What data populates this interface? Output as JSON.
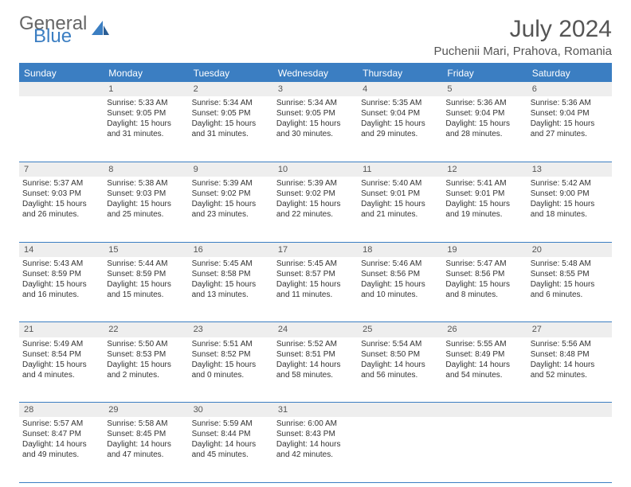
{
  "logo": {
    "line1": "General",
    "line2": "Blue"
  },
  "title": "July 2024",
  "location": "Puchenii Mari, Prahova, Romania",
  "weekdays": [
    "Sunday",
    "Monday",
    "Tuesday",
    "Wednesday",
    "Thursday",
    "Friday",
    "Saturday"
  ],
  "colors": {
    "accent": "#3b7ec2",
    "header_text": "#ffffff",
    "daynum_bg": "#eeeeee",
    "text": "#333333",
    "logo_gray": "#666666"
  },
  "weeks": [
    {
      "nums": [
        "",
        "1",
        "2",
        "3",
        "4",
        "5",
        "6"
      ],
      "cells": [
        null,
        {
          "sunrise": "Sunrise: 5:33 AM",
          "sunset": "Sunset: 9:05 PM",
          "day": "Daylight: 15 hours and 31 minutes."
        },
        {
          "sunrise": "Sunrise: 5:34 AM",
          "sunset": "Sunset: 9:05 PM",
          "day": "Daylight: 15 hours and 31 minutes."
        },
        {
          "sunrise": "Sunrise: 5:34 AM",
          "sunset": "Sunset: 9:05 PM",
          "day": "Daylight: 15 hours and 30 minutes."
        },
        {
          "sunrise": "Sunrise: 5:35 AM",
          "sunset": "Sunset: 9:04 PM",
          "day": "Daylight: 15 hours and 29 minutes."
        },
        {
          "sunrise": "Sunrise: 5:36 AM",
          "sunset": "Sunset: 9:04 PM",
          "day": "Daylight: 15 hours and 28 minutes."
        },
        {
          "sunrise": "Sunrise: 5:36 AM",
          "sunset": "Sunset: 9:04 PM",
          "day": "Daylight: 15 hours and 27 minutes."
        }
      ]
    },
    {
      "nums": [
        "7",
        "8",
        "9",
        "10",
        "11",
        "12",
        "13"
      ],
      "cells": [
        {
          "sunrise": "Sunrise: 5:37 AM",
          "sunset": "Sunset: 9:03 PM",
          "day": "Daylight: 15 hours and 26 minutes."
        },
        {
          "sunrise": "Sunrise: 5:38 AM",
          "sunset": "Sunset: 9:03 PM",
          "day": "Daylight: 15 hours and 25 minutes."
        },
        {
          "sunrise": "Sunrise: 5:39 AM",
          "sunset": "Sunset: 9:02 PM",
          "day": "Daylight: 15 hours and 23 minutes."
        },
        {
          "sunrise": "Sunrise: 5:39 AM",
          "sunset": "Sunset: 9:02 PM",
          "day": "Daylight: 15 hours and 22 minutes."
        },
        {
          "sunrise": "Sunrise: 5:40 AM",
          "sunset": "Sunset: 9:01 PM",
          "day": "Daylight: 15 hours and 21 minutes."
        },
        {
          "sunrise": "Sunrise: 5:41 AM",
          "sunset": "Sunset: 9:01 PM",
          "day": "Daylight: 15 hours and 19 minutes."
        },
        {
          "sunrise": "Sunrise: 5:42 AM",
          "sunset": "Sunset: 9:00 PM",
          "day": "Daylight: 15 hours and 18 minutes."
        }
      ]
    },
    {
      "nums": [
        "14",
        "15",
        "16",
        "17",
        "18",
        "19",
        "20"
      ],
      "cells": [
        {
          "sunrise": "Sunrise: 5:43 AM",
          "sunset": "Sunset: 8:59 PM",
          "day": "Daylight: 15 hours and 16 minutes."
        },
        {
          "sunrise": "Sunrise: 5:44 AM",
          "sunset": "Sunset: 8:59 PM",
          "day": "Daylight: 15 hours and 15 minutes."
        },
        {
          "sunrise": "Sunrise: 5:45 AM",
          "sunset": "Sunset: 8:58 PM",
          "day": "Daylight: 15 hours and 13 minutes."
        },
        {
          "sunrise": "Sunrise: 5:45 AM",
          "sunset": "Sunset: 8:57 PM",
          "day": "Daylight: 15 hours and 11 minutes."
        },
        {
          "sunrise": "Sunrise: 5:46 AM",
          "sunset": "Sunset: 8:56 PM",
          "day": "Daylight: 15 hours and 10 minutes."
        },
        {
          "sunrise": "Sunrise: 5:47 AM",
          "sunset": "Sunset: 8:56 PM",
          "day": "Daylight: 15 hours and 8 minutes."
        },
        {
          "sunrise": "Sunrise: 5:48 AM",
          "sunset": "Sunset: 8:55 PM",
          "day": "Daylight: 15 hours and 6 minutes."
        }
      ]
    },
    {
      "nums": [
        "21",
        "22",
        "23",
        "24",
        "25",
        "26",
        "27"
      ],
      "cells": [
        {
          "sunrise": "Sunrise: 5:49 AM",
          "sunset": "Sunset: 8:54 PM",
          "day": "Daylight: 15 hours and 4 minutes."
        },
        {
          "sunrise": "Sunrise: 5:50 AM",
          "sunset": "Sunset: 8:53 PM",
          "day": "Daylight: 15 hours and 2 minutes."
        },
        {
          "sunrise": "Sunrise: 5:51 AM",
          "sunset": "Sunset: 8:52 PM",
          "day": "Daylight: 15 hours and 0 minutes."
        },
        {
          "sunrise": "Sunrise: 5:52 AM",
          "sunset": "Sunset: 8:51 PM",
          "day": "Daylight: 14 hours and 58 minutes."
        },
        {
          "sunrise": "Sunrise: 5:54 AM",
          "sunset": "Sunset: 8:50 PM",
          "day": "Daylight: 14 hours and 56 minutes."
        },
        {
          "sunrise": "Sunrise: 5:55 AM",
          "sunset": "Sunset: 8:49 PM",
          "day": "Daylight: 14 hours and 54 minutes."
        },
        {
          "sunrise": "Sunrise: 5:56 AM",
          "sunset": "Sunset: 8:48 PM",
          "day": "Daylight: 14 hours and 52 minutes."
        }
      ]
    },
    {
      "nums": [
        "28",
        "29",
        "30",
        "31",
        "",
        "",
        ""
      ],
      "cells": [
        {
          "sunrise": "Sunrise: 5:57 AM",
          "sunset": "Sunset: 8:47 PM",
          "day": "Daylight: 14 hours and 49 minutes."
        },
        {
          "sunrise": "Sunrise: 5:58 AM",
          "sunset": "Sunset: 8:45 PM",
          "day": "Daylight: 14 hours and 47 minutes."
        },
        {
          "sunrise": "Sunrise: 5:59 AM",
          "sunset": "Sunset: 8:44 PM",
          "day": "Daylight: 14 hours and 45 minutes."
        },
        {
          "sunrise": "Sunrise: 6:00 AM",
          "sunset": "Sunset: 8:43 PM",
          "day": "Daylight: 14 hours and 42 minutes."
        },
        null,
        null,
        null
      ]
    }
  ]
}
